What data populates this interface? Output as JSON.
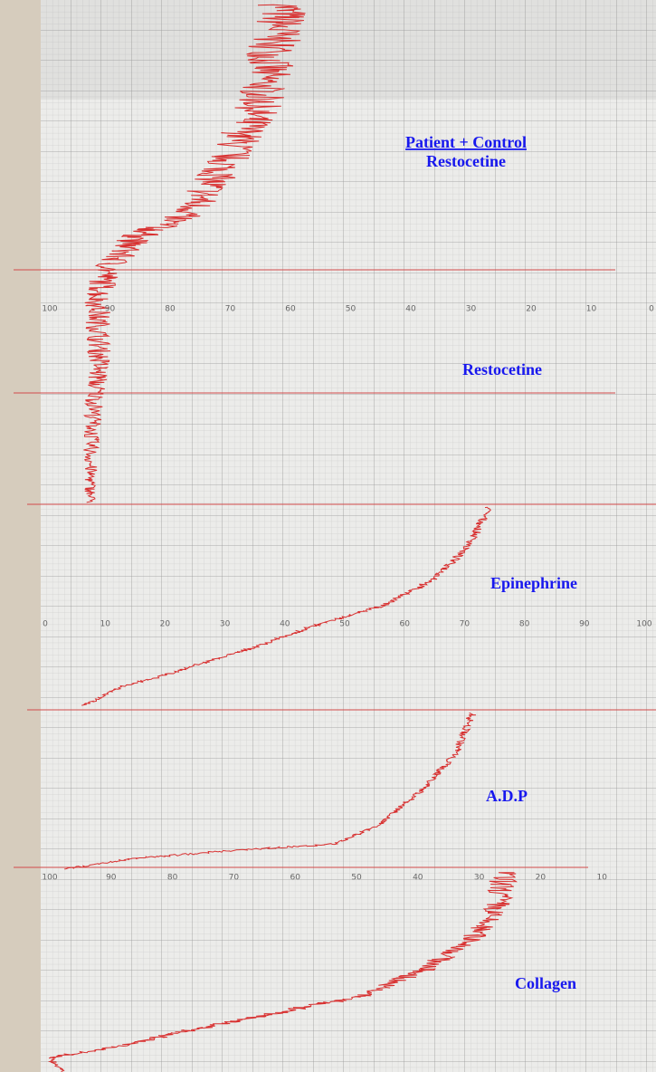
{
  "panels": [
    {
      "title": "Patient + Control",
      "subtitle": "Restocetine"
    },
    {
      "title": "Restocetine"
    },
    {
      "title": "Epinephrine"
    },
    {
      "title": "A.D.P"
    },
    {
      "title": "Collagen"
    }
  ],
  "scales": {
    "top": [
      100,
      90,
      80,
      70,
      60,
      50,
      40,
      30,
      20,
      10,
      0
    ],
    "epinephrine": [
      0,
      10,
      20,
      30,
      40,
      50,
      60,
      70,
      80,
      90,
      100
    ],
    "collagen": [
      100,
      90,
      80,
      70,
      60,
      50,
      40,
      30,
      20,
      10
    ]
  }
}
